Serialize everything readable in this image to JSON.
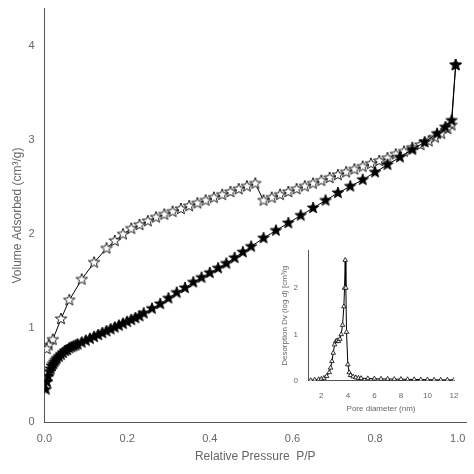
{
  "chart_data": [
    {
      "type": "line",
      "xlabel": "Relative Pressure  P/P",
      "ylabel": "Volume Adsorbed (cm³/g)",
      "xlim": [
        0,
        1.02
      ],
      "ylim": [
        0,
        4.4
      ],
      "xticks": [
        {
          "value": 0,
          "label": "0.0"
        },
        0.2,
        0.4,
        0.6,
        0.8,
        {
          "value": 1,
          "label": "1.0"
        }
      ],
      "yticks": [
        0,
        1,
        2,
        3,
        4
      ],
      "grid": false,
      "series": [
        {
          "color": "#000000",
          "marker": "star",
          "line_style": "solid",
          "x": [
            0.003,
            0.006,
            0.009,
            0.012,
            0.015,
            0.018,
            0.021,
            0.024,
            0.027,
            0.03,
            0.035,
            0.04,
            0.045,
            0.05,
            0.055,
            0.06,
            0.065,
            0.07,
            0.075,
            0.08,
            0.09,
            0.1,
            0.11,
            0.12,
            0.13,
            0.14,
            0.15,
            0.16,
            0.17,
            0.18,
            0.19,
            0.2,
            0.21,
            0.22,
            0.23,
            0.24,
            0.26,
            0.28,
            0.3,
            0.32,
            0.34,
            0.36,
            0.38,
            0.4,
            0.42,
            0.44,
            0.46,
            0.48,
            0.5,
            0.53,
            0.56,
            0.59,
            0.62,
            0.65,
            0.68,
            0.71,
            0.74,
            0.77,
            0.8,
            0.83,
            0.86,
            0.89,
            0.92,
            0.95,
            0.97,
            0.985,
            0.995
          ],
          "values": [
            0.35,
            0.43,
            0.49,
            0.54,
            0.57,
            0.6,
            0.62,
            0.64,
            0.66,
            0.68,
            0.7,
            0.72,
            0.74,
            0.76,
            0.77,
            0.79,
            0.8,
            0.81,
            0.82,
            0.83,
            0.85,
            0.87,
            0.89,
            0.91,
            0.93,
            0.95,
            0.97,
            0.99,
            1.01,
            1.03,
            1.05,
            1.07,
            1.09,
            1.11,
            1.13,
            1.16,
            1.21,
            1.26,
            1.32,
            1.38,
            1.43,
            1.49,
            1.54,
            1.59,
            1.64,
            1.69,
            1.75,
            1.81,
            1.87,
            1.96,
            2.04,
            2.12,
            2.2,
            2.28,
            2.36,
            2.44,
            2.51,
            2.58,
            2.66,
            2.74,
            2.82,
            2.9,
            2.98,
            3.07,
            3.14,
            3.21,
            3.8
          ]
        },
        {
          "color": "#000000",
          "marker": "star_open",
          "line_style": "solid",
          "x": [
            0.995,
            0.985,
            0.975,
            0.96,
            0.945,
            0.93,
            0.91,
            0.89,
            0.87,
            0.85,
            0.83,
            0.81,
            0.79,
            0.77,
            0.75,
            0.73,
            0.71,
            0.69,
            0.67,
            0.65,
            0.63,
            0.61,
            0.59,
            0.57,
            0.55,
            0.53,
            0.51,
            0.49,
            0.47,
            0.45,
            0.43,
            0.41,
            0.39,
            0.37,
            0.35,
            0.33,
            0.31,
            0.29,
            0.27,
            0.25,
            0.23,
            0.21,
            0.19,
            0.17,
            0.15,
            0.12,
            0.09,
            0.06,
            0.04,
            0.02,
            0.01,
            0.005
          ],
          "values": [
            3.8,
            3.16,
            3.12,
            3.07,
            3.03,
            2.99,
            2.95,
            2.92,
            2.88,
            2.85,
            2.81,
            2.78,
            2.75,
            2.72,
            2.69,
            2.66,
            2.63,
            2.6,
            2.57,
            2.54,
            2.51,
            2.48,
            2.45,
            2.42,
            2.39,
            2.36,
            2.54,
            2.51,
            2.48,
            2.45,
            2.42,
            2.39,
            2.36,
            2.33,
            2.3,
            2.27,
            2.24,
            2.21,
            2.18,
            2.14,
            2.1,
            2.06,
            2.0,
            1.93,
            1.85,
            1.7,
            1.52,
            1.3,
            1.1,
            0.88,
            0.82,
            0.78
          ]
        }
      ]
    },
    {
      "type": "line",
      "xlabel": "Pore diameter (nm)",
      "ylabel": "Desorption Dv (log d) [cm³/g",
      "xlim": [
        1,
        12
      ],
      "ylim": [
        0,
        2.8
      ],
      "xticks": [
        2,
        4,
        6,
        8,
        10,
        12
      ],
      "yticks": [
        0,
        1,
        2
      ],
      "grid": false,
      "series": [
        {
          "color": "#000000",
          "marker": "triangle_open",
          "line_style": "solid",
          "x": [
            1.2,
            1.5,
            1.8,
            2.0,
            2.2,
            2.4,
            2.6,
            2.7,
            2.8,
            2.9,
            3.0,
            3.1,
            3.2,
            3.3,
            3.4,
            3.5,
            3.6,
            3.7,
            3.75,
            3.8,
            3.85,
            3.9,
            4.0,
            4.1,
            4.2,
            4.4,
            4.6,
            4.8,
            5.0,
            5.5,
            6.0,
            6.5,
            7.0,
            7.5,
            8.0,
            8.5,
            9.0,
            9.5,
            10.0,
            10.5,
            11.0,
            11.5,
            12.0
          ],
          "values": [
            0.01,
            0.02,
            0.03,
            0.04,
            0.06,
            0.1,
            0.18,
            0.28,
            0.42,
            0.6,
            0.78,
            0.85,
            0.87,
            0.85,
            0.9,
            1.0,
            1.2,
            1.6,
            2.0,
            2.6,
            2.0,
            1.05,
            0.35,
            0.18,
            0.12,
            0.09,
            0.07,
            0.06,
            0.055,
            0.05,
            0.045,
            0.04,
            0.04,
            0.035,
            0.035,
            0.03,
            0.03,
            0.025,
            0.025,
            0.02,
            0.02,
            0.02,
            0.02
          ]
        }
      ]
    }
  ]
}
